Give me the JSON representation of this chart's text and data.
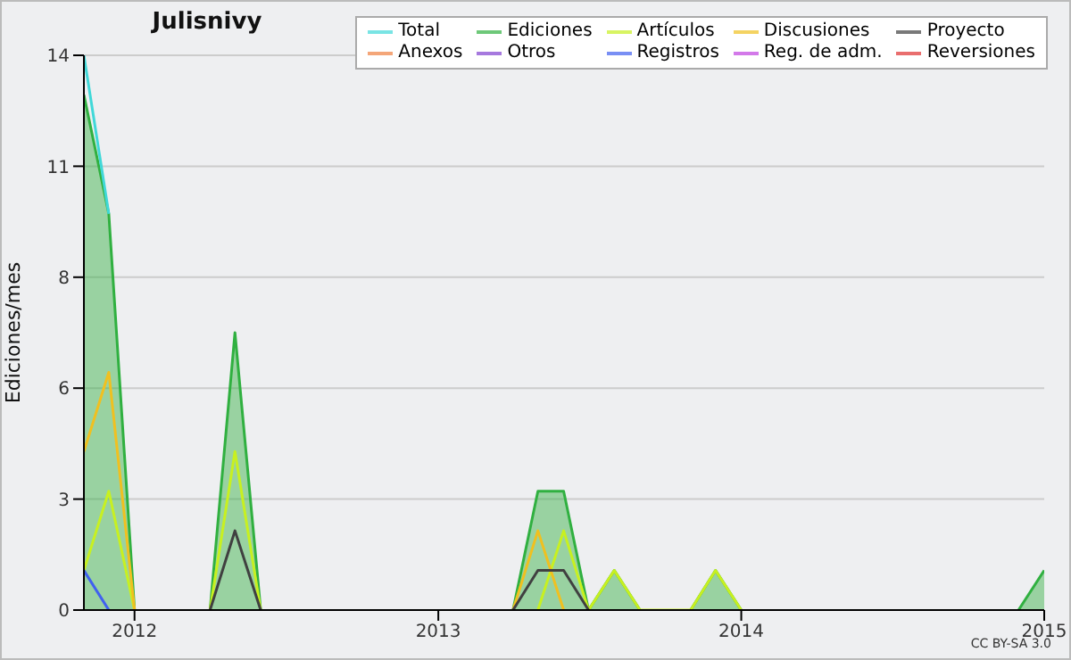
{
  "chart_data": {
    "type": "line",
    "title": "Julisnivy",
    "ylabel": "Ediciones/mes",
    "x": [
      "2011-11",
      "2011-12",
      "2012-01",
      "2012-02",
      "2012-03",
      "2012-04",
      "2012-05",
      "2012-06",
      "2012-07",
      "2012-08",
      "2012-09",
      "2012-10",
      "2012-11",
      "2012-12",
      "2013-01",
      "2013-02",
      "2013-03",
      "2013-04",
      "2013-05",
      "2013-06",
      "2013-07",
      "2013-08",
      "2013-09",
      "2013-10",
      "2013-11",
      "2013-12",
      "2014-01",
      "2014-02",
      "2014-03",
      "2014-04",
      "2014-05",
      "2014-06",
      "2014-07",
      "2014-08",
      "2014-09",
      "2014-10",
      "2014-11",
      "2014-12",
      "2015-01"
    ],
    "series": [
      {
        "name": "Total",
        "color": "#40d8d8",
        "values": [
          14,
          10,
          null,
          null,
          null,
          null,
          null,
          null,
          null,
          null,
          null,
          null,
          null,
          null,
          null,
          null,
          null,
          null,
          null,
          null,
          null,
          null,
          null,
          null,
          null,
          null,
          null,
          null,
          null,
          null,
          null,
          null,
          null,
          null,
          null,
          null,
          null,
          null,
          null
        ]
      },
      {
        "name": "Ediciones",
        "type": "area",
        "color": "#30b040",
        "values": [
          13,
          10,
          0,
          null,
          null,
          0,
          7,
          0,
          null,
          null,
          null,
          null,
          null,
          null,
          null,
          null,
          null,
          0,
          3,
          3,
          0,
          1,
          0,
          null,
          0,
          1,
          0,
          null,
          null,
          null,
          null,
          null,
          null,
          null,
          null,
          null,
          null,
          0,
          1
        ]
      },
      {
        "name": "Artículos",
        "color": "#c8f020",
        "values": [
          1,
          3,
          0,
          null,
          null,
          0,
          4,
          0,
          null,
          null,
          null,
          null,
          null,
          null,
          null,
          null,
          null,
          null,
          0,
          2,
          0,
          1,
          0,
          0,
          0,
          1,
          0,
          null,
          null,
          null,
          null,
          null,
          null,
          null,
          null,
          null,
          null,
          null,
          null
        ]
      },
      {
        "name": "Discusiones",
        "color": "#f0c020",
        "values": [
          4,
          6,
          0,
          null,
          null,
          null,
          null,
          null,
          null,
          null,
          null,
          null,
          null,
          null,
          null,
          null,
          null,
          0,
          2,
          0,
          null,
          null,
          null,
          null,
          null,
          null,
          null,
          null,
          null,
          null,
          null,
          null,
          null,
          null,
          null,
          null,
          null,
          null,
          null
        ]
      },
      {
        "name": "Proyecto",
        "color": "#404040",
        "values": [
          null,
          null,
          null,
          null,
          null,
          0,
          2,
          0,
          null,
          null,
          null,
          null,
          null,
          null,
          null,
          null,
          null,
          0,
          1,
          1,
          0,
          null,
          null,
          null,
          null,
          null,
          null,
          null,
          null,
          null,
          null,
          null,
          null,
          null,
          null,
          null,
          null,
          null,
          null
        ]
      },
      {
        "name": "Anexos",
        "color": "#f08040",
        "values": [
          null,
          null,
          null,
          null,
          null,
          null,
          null,
          null,
          null,
          null,
          null,
          null,
          null,
          null,
          null,
          null,
          null,
          null,
          null,
          null,
          null,
          null,
          null,
          null,
          null,
          null,
          null,
          null,
          null,
          null,
          null,
          null,
          null,
          null,
          null,
          null,
          null,
          null,
          null
        ]
      },
      {
        "name": "Otros",
        "color": "#8040d0",
        "values": [
          null,
          null,
          null,
          null,
          null,
          null,
          null,
          null,
          null,
          null,
          null,
          null,
          null,
          null,
          null,
          null,
          null,
          null,
          null,
          null,
          null,
          null,
          null,
          null,
          null,
          null,
          null,
          null,
          null,
          null,
          null,
          null,
          null,
          null,
          null,
          null,
          null,
          null,
          null
        ]
      },
      {
        "name": "Registros",
        "color": "#4060f0",
        "values": [
          1,
          0,
          null,
          null,
          null,
          null,
          null,
          null,
          null,
          null,
          null,
          null,
          null,
          null,
          null,
          null,
          null,
          null,
          null,
          null,
          null,
          null,
          null,
          null,
          null,
          null,
          null,
          null,
          null,
          null,
          null,
          null,
          null,
          null,
          null,
          null,
          null,
          null,
          null
        ]
      },
      {
        "name": "Reg. de adm.",
        "color": "#c040e0",
        "values": [
          null,
          null,
          null,
          null,
          null,
          null,
          null,
          null,
          null,
          null,
          null,
          null,
          null,
          null,
          null,
          null,
          null,
          null,
          null,
          null,
          null,
          null,
          null,
          null,
          null,
          null,
          null,
          null,
          null,
          null,
          null,
          null,
          null,
          null,
          null,
          null,
          null,
          null,
          null
        ]
      },
      {
        "name": "Reversiones",
        "color": "#e03030",
        "values": [
          null,
          null,
          null,
          null,
          null,
          null,
          null,
          null,
          null,
          null,
          null,
          null,
          null,
          null,
          null,
          null,
          null,
          null,
          null,
          null,
          null,
          null,
          null,
          null,
          null,
          null,
          null,
          null,
          null,
          null,
          null,
          null,
          null,
          null,
          null,
          null,
          null,
          null,
          null
        ]
      }
    ],
    "xlim": [
      "2011-11",
      "2015-01"
    ],
    "xticks": [
      "2012",
      "2013",
      "2014",
      "2015"
    ],
    "ylim": [
      0,
      14
    ],
    "yticks": [
      0,
      {
        "value": 2.8,
        "label": "3"
      },
      {
        "value": 5.6,
        "label": "6"
      },
      {
        "value": 8.4,
        "label": "8"
      },
      {
        "value": 11.2,
        "label": "11"
      },
      14
    ],
    "grid": "y",
    "legend": "top right",
    "marker": "none",
    "line_style": "solid",
    "annotations": [
      "CC BY-SA 3.0"
    ]
  }
}
